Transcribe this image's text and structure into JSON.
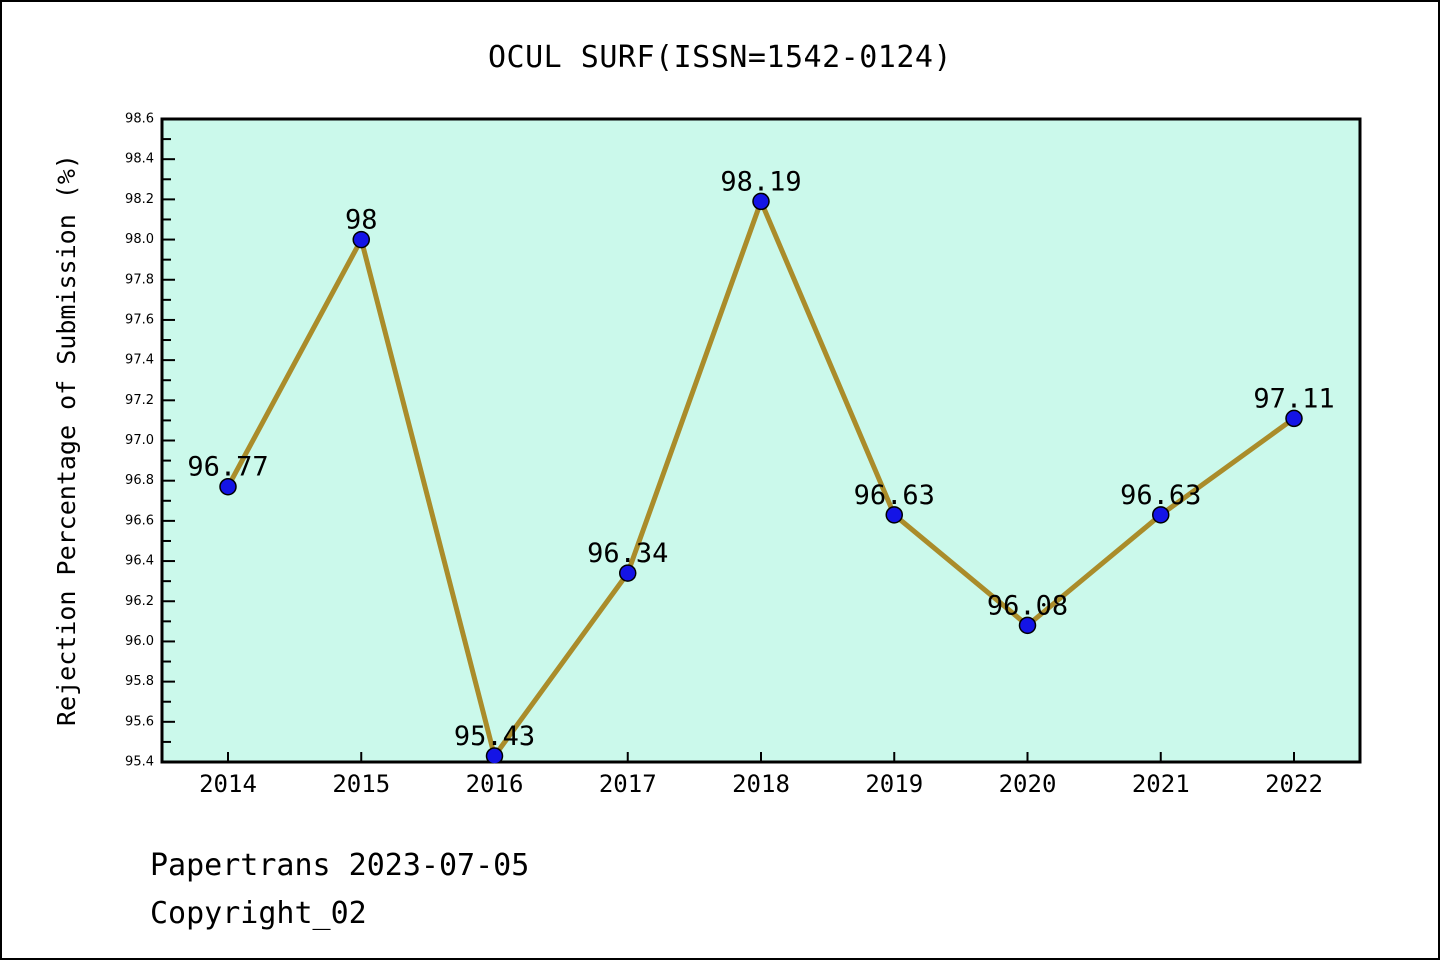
{
  "chart_data": {
    "type": "line",
    "title": "OCUL SURF(ISSN=1542-0124)",
    "ylabel": "Rejection Percentage of Submission (%)",
    "xlabel": "",
    "categories": [
      "2014",
      "2015",
      "2016",
      "2017",
      "2018",
      "2019",
      "2020",
      "2021",
      "2022"
    ],
    "series": [
      {
        "name": "Rejection Percentage of Submission",
        "values": [
          96.77,
          98,
          95.43,
          96.34,
          98.19,
          96.63,
          96.08,
          96.63,
          97.11
        ]
      }
    ],
    "point_labels": [
      "96.77",
      "98",
      "95.43",
      "96.34",
      "98.19",
      "96.63",
      "96.08",
      "96.63",
      "97.11"
    ],
    "ylim": [
      95.4,
      98.6
    ],
    "y_major_step": 0.2,
    "y_minor_step": 0.1,
    "y_tick_labels": [
      "95.4",
      "95.6",
      "95.8",
      "96.0",
      "96.2",
      "96.4",
      "96.6",
      "96.8",
      "97.0",
      "97.2",
      "97.4",
      "97.6",
      "97.8",
      "98.0",
      "98.2",
      "98.4",
      "98.6"
    ],
    "grid": false,
    "legend_position": "none",
    "colors": {
      "plot_bg": "#cbf9eb",
      "line": "#aa8c2a",
      "marker_fill": "#1414e6",
      "marker_edge": "#000000",
      "axis": "#000000",
      "text": "#000000"
    }
  },
  "footer": {
    "line1": "Papertrans 2023-07-05",
    "line2": "Copyright_02"
  }
}
